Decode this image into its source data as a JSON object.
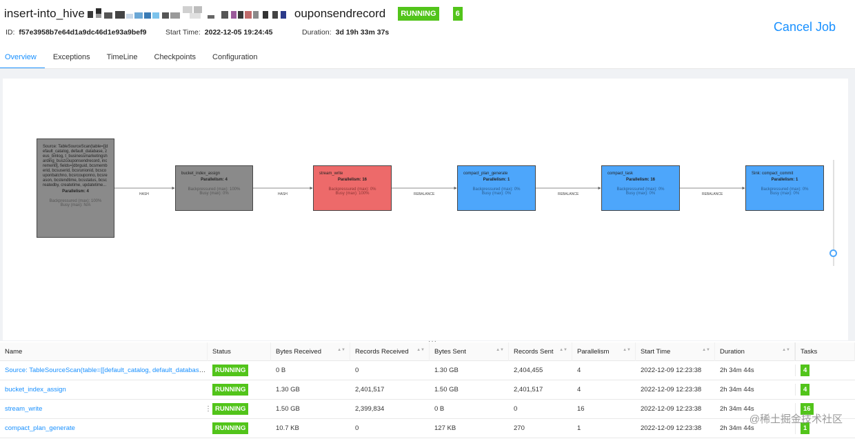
{
  "header": {
    "title_prefix": "insert-into_hive",
    "title_suffix": "ouponsendrecord",
    "status": "RUNNING",
    "task_count": "6",
    "id_label": "ID:",
    "id_value": "f57e3958b7e64d1a9dc46d1e93a9bef9",
    "start_label": "Start Time:",
    "start_value": "2022-12-05 19:24:45",
    "duration_label": "Duration:",
    "duration_value": "3d 19h 33m 37s",
    "cancel_label": "Cancel Job"
  },
  "tabs": [
    {
      "label": "Overview",
      "active": true
    },
    {
      "label": "Exceptions"
    },
    {
      "label": "TimeLine"
    },
    {
      "label": "Checkpoints"
    },
    {
      "label": "Configuration"
    }
  ],
  "graph": {
    "nodes": [
      {
        "name": "Source: TableSourceScan(table=[[default_catalog, default_database, zeus_binlog, t_businessmarketingsharding_buszcouponsendrecord, incrementl], fields=[dbrguid, bcsmemberid, bcsuserid, bcsrunionid, bcscouponbatchno, bcsrcouponno, bcsreason, bcstendtime, bcsstatus, bcscreatedby, createtime, updatetime...",
        "parallelism": "Parallelism: 4",
        "backpressure": "Backpressured (max): 100%",
        "busy": "Busy (max): N/A",
        "color": "gray"
      },
      {
        "name": "bucket_index_assign",
        "parallelism": "Parallelism: 4",
        "backpressure": "Backpressured (max): 100%",
        "busy": "Busy (max): 0%",
        "color": "gray"
      },
      {
        "name": "stream_write",
        "parallelism": "Parallelism: 16",
        "backpressure": "Backpressured (max): 0%",
        "busy": "Busy (max): 100%",
        "color": "red"
      },
      {
        "name": "compact_plan_generate",
        "parallelism": "Parallelism: 1",
        "backpressure": "Backpressured (max): 0%",
        "busy": "Busy (max): 0%",
        "color": "blue"
      },
      {
        "name": "compact_task",
        "parallelism": "Parallelism: 16",
        "backpressure": "Backpressured (max): 0%",
        "busy": "Busy (max): 0%",
        "color": "blue"
      },
      {
        "name": "Sink: compact_commit",
        "parallelism": "Parallelism: 1",
        "backpressure": "Backpressured (max): 0%",
        "busy": "Busy (max): 0%",
        "color": "blue"
      }
    ],
    "edges": [
      "HASH",
      "HASH",
      "REBALANCE",
      "REBALANCE",
      "REBALANCE"
    ]
  },
  "table": {
    "columns": [
      "Name",
      "Status",
      "Bytes Received",
      "Records Received",
      "Bytes Sent",
      "Records Sent",
      "Parallelism",
      "Start Time",
      "Duration",
      "Tasks"
    ],
    "rows": [
      {
        "name": "Source: TableSourceScan(table=[[default_catalog, default_database, z...",
        "status": "RUNNING",
        "bytes_received": "0 B",
        "records_received": "0",
        "bytes_sent": "1.30 GB",
        "records_sent": "2,404,455",
        "parallelism": "4",
        "start_time": "2022-12-09 12:23:38",
        "duration": "2h 34m 44s",
        "tasks": "4"
      },
      {
        "name": "bucket_index_assign",
        "status": "RUNNING",
        "bytes_received": "1.30 GB",
        "records_received": "2,401,517",
        "bytes_sent": "1.50 GB",
        "records_sent": "2,401,517",
        "parallelism": "4",
        "start_time": "2022-12-09 12:23:38",
        "duration": "2h 34m 44s",
        "tasks": "4"
      },
      {
        "name": "stream_write",
        "status": "RUNNING",
        "bytes_received": "1.50 GB",
        "records_received": "2,399,834",
        "bytes_sent": "0 B",
        "records_sent": "0",
        "parallelism": "16",
        "start_time": "2022-12-09 12:23:38",
        "duration": "2h 34m 44s",
        "tasks": "16"
      },
      {
        "name": "compact_plan_generate",
        "status": "RUNNING",
        "bytes_received": "10.7 KB",
        "records_received": "0",
        "bytes_sent": "127 KB",
        "records_sent": "270",
        "parallelism": "1",
        "start_time": "2022-12-09 12:23:38",
        "duration": "2h 34m 44s",
        "tasks": "1"
      }
    ]
  },
  "watermark": "@稀土掘金技术社区",
  "colors": {
    "accent": "#1890ff",
    "running": "#52c41a",
    "node_gray": "#8a8a8a",
    "node_red": "#ed6a6a",
    "node_blue": "#4da6fb"
  }
}
